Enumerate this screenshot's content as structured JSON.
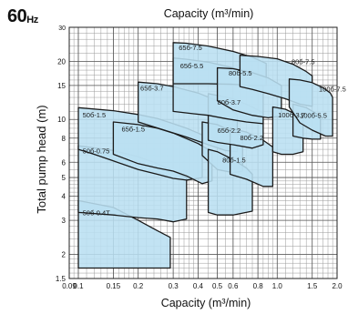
{
  "frequency": {
    "value": "60",
    "unit": "Hz"
  },
  "chart_data": {
    "type": "area",
    "title": "",
    "top_axis_label": "Capacity (m³/min)",
    "xlabel": "Capacity (m³/min)",
    "ylabel": "Total pump head (m)",
    "x_scale": "log",
    "y_scale": "log",
    "xlim": [
      0.09,
      2.0
    ],
    "ylim": [
      1.5,
      30
    ],
    "x_ticks": [
      {
        "v": 0.09,
        "label": "0.09"
      },
      {
        "v": 0.1,
        "label": "0.1"
      },
      {
        "v": 0.15,
        "label": "0.15"
      },
      {
        "v": 0.2,
        "label": "0.2"
      },
      {
        "v": 0.3,
        "label": "0.3"
      },
      {
        "v": 0.4,
        "label": "0.4"
      },
      {
        "v": 0.5,
        "label": "0.5"
      },
      {
        "v": 0.6,
        "label": "0.6"
      },
      {
        "v": 0.8,
        "label": "0.8"
      },
      {
        "v": 1.0,
        "label": "1.0"
      },
      {
        "v": 1.5,
        "label": "1.5"
      },
      {
        "v": 2.0,
        "label": "2.0"
      }
    ],
    "y_ticks": [
      {
        "v": 1.5,
        "label": "1.5"
      },
      {
        "v": 2,
        "label": "2"
      },
      {
        "v": 3,
        "label": "3"
      },
      {
        "v": 4,
        "label": "4"
      },
      {
        "v": 5,
        "label": "5"
      },
      {
        "v": 6,
        "label": "6"
      },
      {
        "v": 8,
        "label": "8"
      },
      {
        "v": 10,
        "label": "10"
      },
      {
        "v": 15,
        "label": "15"
      },
      {
        "v": 20,
        "label": "20"
      },
      {
        "v": 30,
        "label": "30"
      }
    ],
    "grid": true,
    "fill_color": "#b9dff1",
    "edge_color": "#1a1a1a",
    "series": [
      {
        "name": "50б-0.4T",
        "label_at": [
          0.105,
          3.3
        ],
        "points": [
          [
            0.1,
            1.7
          ],
          [
            0.1,
            3.8
          ],
          [
            0.15,
            3.5
          ],
          [
            0.2,
            3.0
          ],
          [
            0.25,
            2.65
          ],
          [
            0.29,
            2.45
          ],
          [
            0.29,
            1.7
          ]
        ]
      },
      {
        "name": "50б-0.75",
        "label_at": [
          0.105,
          6.9
        ],
        "points": [
          [
            0.1,
            3.3
          ],
          [
            0.1,
            7.3
          ],
          [
            0.15,
            6.9
          ],
          [
            0.2,
            6.4
          ],
          [
            0.25,
            5.9
          ],
          [
            0.3,
            5.4
          ],
          [
            0.35,
            5.0
          ],
          [
            0.35,
            3.05
          ],
          [
            0.3,
            2.95
          ],
          [
            0.25,
            3.05
          ],
          [
            0.2,
            3.1
          ],
          [
            0.15,
            3.2
          ]
        ]
      },
      {
        "name": "50б-1.5",
        "label_at": [
          0.105,
          10.6
        ],
        "points": [
          [
            0.1,
            7.0
          ],
          [
            0.1,
            11.5
          ],
          [
            0.15,
            11.1
          ],
          [
            0.2,
            10.6
          ],
          [
            0.25,
            10.1
          ],
          [
            0.3,
            9.5
          ],
          [
            0.35,
            9.0
          ],
          [
            0.4,
            8.5
          ],
          [
            0.42,
            8.3
          ],
          [
            0.42,
            5.0
          ],
          [
            0.35,
            4.85
          ],
          [
            0.3,
            4.95
          ],
          [
            0.25,
            5.2
          ],
          [
            0.2,
            5.5
          ],
          [
            0.15,
            6.1
          ],
          [
            0.12,
            6.6
          ]
        ]
      },
      {
        "name": "65б-1.5",
        "label_at": [
          0.165,
          8.95
        ],
        "points": [
          [
            0.15,
            6.6
          ],
          [
            0.15,
            9.7
          ],
          [
            0.2,
            9.4
          ],
          [
            0.25,
            9.0
          ],
          [
            0.3,
            8.5
          ],
          [
            0.4,
            7.5
          ],
          [
            0.47,
            6.8
          ],
          [
            0.47,
            4.8
          ],
          [
            0.42,
            4.65
          ],
          [
            0.35,
            5.1
          ],
          [
            0.3,
            5.4
          ],
          [
            0.25,
            5.6
          ],
          [
            0.2,
            5.9
          ]
        ]
      },
      {
        "name": "65б-3.7",
        "label_at": [
          0.205,
          14.6
        ],
        "points": [
          [
            0.2,
            9.7
          ],
          [
            0.2,
            15.6
          ],
          [
            0.25,
            15.3
          ],
          [
            0.3,
            14.8
          ],
          [
            0.4,
            13.7
          ],
          [
            0.5,
            12.5
          ],
          [
            0.6,
            11.0
          ],
          [
            0.63,
            10.5
          ],
          [
            0.63,
            6.8
          ],
          [
            0.55,
            6.9
          ],
          [
            0.45,
            7.4
          ],
          [
            0.35,
            8.1
          ],
          [
            0.28,
            8.7
          ]
        ]
      },
      {
        "name": "65б-2.2",
        "label_at": [
          0.5,
          8.8
        ],
        "points": [
          [
            0.42,
            6.5
          ],
          [
            0.42,
            9.7
          ],
          [
            0.5,
            9.4
          ],
          [
            0.6,
            8.6
          ],
          [
            0.67,
            8.2
          ],
          [
            0.67,
            5.4
          ],
          [
            0.6,
            5.3
          ],
          [
            0.5,
            5.5
          ]
        ]
      },
      {
        "name": "80б-1.5",
        "label_at": [
          0.53,
          6.2
        ],
        "points": [
          [
            0.45,
            3.3
          ],
          [
            0.45,
            7.0
          ],
          [
            0.5,
            6.8
          ],
          [
            0.6,
            6.2
          ],
          [
            0.7,
            5.6
          ],
          [
            0.75,
            5.2
          ],
          [
            0.75,
            3.35
          ],
          [
            0.6,
            3.2
          ],
          [
            0.5,
            3.2
          ]
        ]
      },
      {
        "name": "80б-2.2",
        "label_at": [
          0.65,
          8.05
        ],
        "points": [
          [
            0.58,
            5.2
          ],
          [
            0.58,
            9.0
          ],
          [
            0.7,
            8.6
          ],
          [
            0.85,
            7.8
          ],
          [
            0.95,
            7.2
          ],
          [
            0.95,
            4.5
          ],
          [
            0.85,
            4.5
          ],
          [
            0.7,
            4.9
          ]
        ]
      },
      {
        "name": "80б-3.7",
        "label_at": [
          0.5,
          12.3
        ],
        "points": [
          [
            0.45,
            7.8
          ],
          [
            0.45,
            13.6
          ],
          [
            0.5,
            13.3
          ],
          [
            0.6,
            12.8
          ],
          [
            0.75,
            11.6
          ],
          [
            0.85,
            10.8
          ],
          [
            0.85,
            7.4
          ],
          [
            0.75,
            7.1
          ],
          [
            0.6,
            7.4
          ],
          [
            0.5,
            7.6
          ]
        ]
      },
      {
        "name": "65б-5.5",
        "label_at": [
          0.325,
          19.0
        ],
        "points": [
          [
            0.3,
            11.0
          ],
          [
            0.3,
            20.8
          ],
          [
            0.35,
            20.5
          ],
          [
            0.45,
            19.8
          ],
          [
            0.6,
            18.5
          ],
          [
            0.75,
            17.0
          ],
          [
            0.85,
            16.0
          ],
          [
            0.85,
            9.5
          ],
          [
            0.7,
            9.7
          ],
          [
            0.55,
            10.1
          ],
          [
            0.45,
            10.5
          ],
          [
            0.38,
            10.7
          ]
        ]
      },
      {
        "name": "65б-7.5",
        "label_at": [
          0.32,
          23.6
        ],
        "points": [
          [
            0.3,
            15.3
          ],
          [
            0.3,
            25.0
          ],
          [
            0.35,
            24.8
          ],
          [
            0.45,
            24.0
          ],
          [
            0.6,
            22.5
          ],
          [
            0.75,
            21.0
          ],
          [
            0.88,
            19.5
          ],
          [
            0.88,
            15.0
          ],
          [
            0.75,
            15.0
          ],
          [
            0.6,
            15.2
          ],
          [
            0.45,
            15.3
          ]
        ]
      },
      {
        "name": "80б-5.5",
        "label_at": [
          0.57,
          17.4
        ],
        "points": [
          [
            0.5,
            12.5
          ],
          [
            0.5,
            18.5
          ],
          [
            0.6,
            18.3
          ],
          [
            0.75,
            17.5
          ],
          [
            0.9,
            16.4
          ],
          [
            1.05,
            15.0
          ],
          [
            1.05,
            10.4
          ],
          [
            0.9,
            10.2
          ],
          [
            0.75,
            10.5
          ],
          [
            0.6,
            11.2
          ]
        ]
      },
      {
        "name": "100б-3.7",
        "label_at": [
          1.01,
          10.6
        ],
        "points": [
          [
            0.95,
            6.8
          ],
          [
            0.95,
            11.6
          ],
          [
            1.1,
            11.3
          ],
          [
            1.25,
            10.6
          ],
          [
            1.35,
            10.0
          ],
          [
            1.35,
            6.8
          ],
          [
            1.2,
            6.6
          ],
          [
            1.05,
            6.6
          ]
        ]
      },
      {
        "name": "100б-5.5",
        "label_at": [
          1.3,
          10.5
        ],
        "points": [
          [
            1.2,
            8.2
          ],
          [
            1.2,
            12.0
          ],
          [
            1.4,
            11.5
          ],
          [
            1.6,
            10.6
          ],
          [
            1.65,
            10.0
          ],
          [
            1.65,
            7.9
          ],
          [
            1.5,
            7.9
          ],
          [
            1.35,
            8.0
          ]
        ]
      },
      {
        "name": "80б-7.5",
        "label_at": [
          1.18,
          20.0
        ],
        "points": [
          [
            0.65,
            14.8
          ],
          [
            0.65,
            21.5
          ],
          [
            0.8,
            21.2
          ],
          [
            1.0,
            20.6
          ],
          [
            1.2,
            19.3
          ],
          [
            1.4,
            17.7
          ],
          [
            1.5,
            16.8
          ],
          [
            1.5,
            11.7
          ],
          [
            1.3,
            12.0
          ],
          [
            1.1,
            12.8
          ],
          [
            0.9,
            13.6
          ],
          [
            0.75,
            14.3
          ]
        ]
      },
      {
        "name": "100б-7.5",
        "label_at": [
          1.62,
          14.4
        ],
        "points": [
          [
            1.15,
            11.6
          ],
          [
            1.15,
            16.2
          ],
          [
            1.3,
            16.0
          ],
          [
            1.5,
            15.5
          ],
          [
            1.7,
            14.6
          ],
          [
            1.85,
            13.7
          ],
          [
            1.9,
            13.0
          ],
          [
            1.9,
            8.2
          ],
          [
            1.75,
            8.2
          ],
          [
            1.5,
            8.8
          ],
          [
            1.3,
            9.6
          ]
        ]
      }
    ]
  }
}
